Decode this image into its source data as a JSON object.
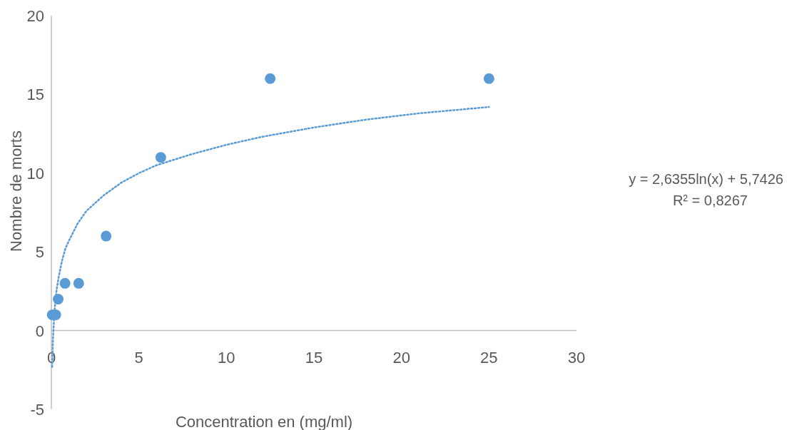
{
  "chart_data": {
    "type": "scatter",
    "xlabel": "Concentration en (mg/ml)",
    "ylabel": "Nombre de morts",
    "xlim": [
      0,
      30
    ],
    "xticks": [
      0,
      5,
      10,
      15,
      20,
      25,
      30
    ],
    "ylim": [
      -5,
      20
    ],
    "yticks": [
      {
        "value": -5,
        "label": "-5"
      },
      0,
      5,
      10,
      15,
      20
    ],
    "grid": false,
    "marker": "circle",
    "annotations": [
      "y = 2,6355ln(x) + 5,7426",
      "R² = 0,8267"
    ],
    "series": [
      {
        "color": "#5b9bd5",
        "x": [
          0.05,
          0.25,
          0.39,
          0.78,
          1.56,
          3.125,
          6.25,
          12.5,
          25
        ],
        "values": [
          1,
          1,
          2,
          3,
          3,
          6,
          11,
          16,
          16
        ]
      },
      {
        "type": "line",
        "color": "#5b9bd5",
        "line_style": "dotted",
        "marker": "none",
        "x": [
          0.047,
          0.06,
          0.08,
          0.1,
          0.15,
          0.2,
          0.3,
          0.4,
          0.6,
          0.8,
          1,
          1.5,
          2,
          3,
          4,
          5,
          6,
          8,
          10,
          12,
          15,
          18,
          21,
          25
        ],
        "values": [
          -2.3,
          -1.7,
          -0.9,
          -0.3,
          0.7,
          1.5,
          2.6,
          3.3,
          4.4,
          5.2,
          5.7,
          6.8,
          7.6,
          8.6,
          9.4,
          10.0,
          10.5,
          11.2,
          11.8,
          12.3,
          12.9,
          13.4,
          13.8,
          14.2
        ]
      }
    ]
  }
}
